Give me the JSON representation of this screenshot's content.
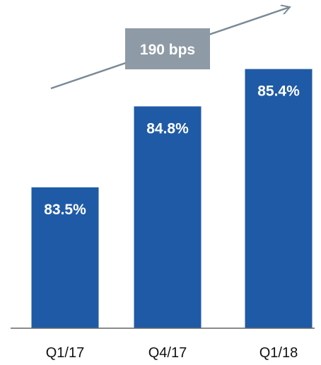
{
  "chart_data": {
    "type": "bar",
    "categories": [
      "Q1/17",
      "Q4/17",
      "Q1/18"
    ],
    "values": [
      83.5,
      84.8,
      85.4
    ],
    "data_labels": [
      "83.5%",
      "84.8%",
      "85.4%"
    ],
    "title": "",
    "xlabel": "",
    "ylabel": "",
    "grid": false,
    "legend": "none",
    "annotation": {
      "text": "190 bps",
      "kind": "upward-trend-arrow"
    }
  },
  "colors": {
    "bar": "#1f5aa6",
    "callout_box": "#8e9ba6",
    "arrow": "#7a8a96",
    "axis": "#666666"
  }
}
